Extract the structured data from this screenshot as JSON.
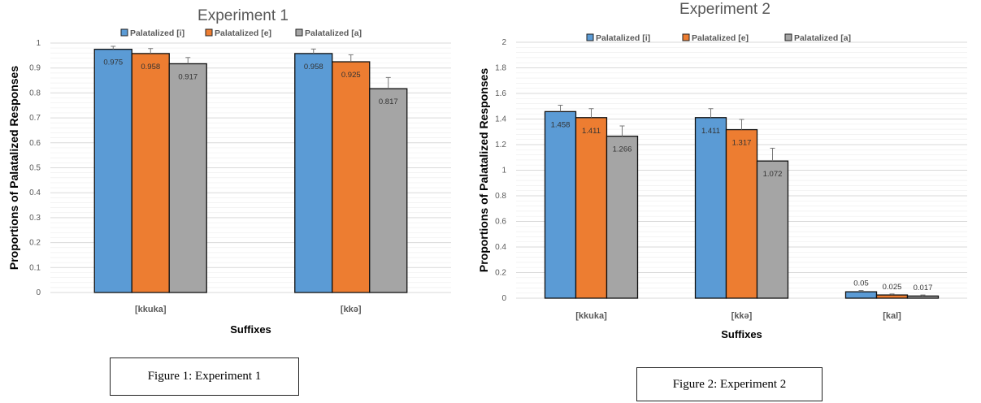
{
  "chart_data": [
    {
      "type": "bar",
      "title": "Experiment 1",
      "xlabel": "Suffixes",
      "ylabel": "Proportions of Palatalized Responses",
      "ylim": [
        0,
        1
      ],
      "yticks": [
        "0",
        "0.1",
        "0.2",
        "0.3",
        "0.4",
        "0.5",
        "0.6",
        "0.7",
        "0.8",
        "0.9",
        "1"
      ],
      "categories": [
        "[kkuka]",
        "[kkə]"
      ],
      "series": [
        {
          "name": "Palatalized [i]",
          "values": [
            0.975,
            0.958
          ],
          "labels": [
            "0.975",
            "0.958"
          ],
          "errors": [
            0.012,
            0.018
          ]
        },
        {
          "name": "Palatalized [e]",
          "values": [
            0.958,
            0.925
          ],
          "labels": [
            "0.958",
            "0.925"
          ],
          "errors": [
            0.02,
            0.028
          ]
        },
        {
          "name": "Palatalized [a]",
          "values": [
            0.917,
            0.817
          ],
          "labels": [
            "0.917",
            "0.817"
          ],
          "errors": [
            0.025,
            0.045
          ]
        }
      ],
      "caption": "Figure 1: Experiment 1"
    },
    {
      "type": "bar",
      "title": "Experiment 2",
      "xlabel": "Suffixes",
      "ylabel": "Proportions of Palatalized Responses",
      "ylim": [
        0,
        2
      ],
      "yticks": [
        "0",
        "0.2",
        "0.4",
        "0.6",
        "0.8",
        "1",
        "1.2",
        "1.4",
        "1.6",
        "1.8",
        "2"
      ],
      "categories": [
        "[kkuka]",
        "[kkə]",
        "[kal]"
      ],
      "series": [
        {
          "name": "Palatalized [i]",
          "values": [
            1.458,
            1.411,
            0.05
          ],
          "labels": [
            "1.458",
            "1.411",
            "0.05"
          ],
          "errors": [
            0.05,
            0.07,
            0.01
          ]
        },
        {
          "name": "Palatalized [e]",
          "values": [
            1.411,
            1.317,
            0.025
          ],
          "labels": [
            "1.411",
            "1.317",
            "0.025"
          ],
          "errors": [
            0.07,
            0.08,
            0.008
          ]
        },
        {
          "name": "Palatalized [a]",
          "values": [
            1.266,
            1.072,
            0.017
          ],
          "labels": [
            "1.266",
            "1.072",
            "0.017"
          ],
          "errors": [
            0.08,
            0.1,
            0.008
          ]
        }
      ],
      "caption": "Figure 2: Experiment 2"
    }
  ],
  "colors": {
    "series": [
      "#5b9bd5",
      "#ed7d31",
      "#a5a5a5"
    ],
    "gridline": "#d9d9d9",
    "axis_text": "#595959",
    "title_text": "#595959"
  }
}
